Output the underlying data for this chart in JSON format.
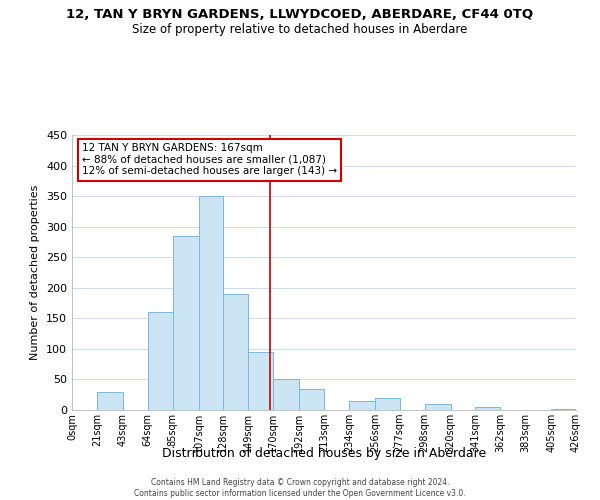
{
  "title": "12, TAN Y BRYN GARDENS, LLWYDCOED, ABERDARE, CF44 0TQ",
  "subtitle": "Size of property relative to detached houses in Aberdare",
  "xlabel": "Distribution of detached houses by size in Aberdare",
  "ylabel": "Number of detached properties",
  "bar_left_edges": [
    0,
    21,
    43,
    64,
    85,
    107,
    128,
    149,
    170,
    192,
    213,
    234,
    256,
    277,
    298,
    320,
    341,
    362,
    383,
    405
  ],
  "bar_widths": [
    21,
    22,
    21,
    21,
    22,
    21,
    21,
    21,
    22,
    21,
    21,
    22,
    21,
    21,
    22,
    21,
    21,
    21,
    22,
    21
  ],
  "bar_heights": [
    0,
    30,
    0,
    160,
    285,
    350,
    190,
    95,
    50,
    35,
    0,
    15,
    20,
    0,
    10,
    0,
    5,
    0,
    0,
    2
  ],
  "bar_color": "#cce5f5",
  "bar_edgecolor": "#7ab8d8",
  "vline_x": 167,
  "vline_color": "#cc0000",
  "ylim": [
    0,
    450
  ],
  "yticks": [
    0,
    50,
    100,
    150,
    200,
    250,
    300,
    350,
    400,
    450
  ],
  "xlim_max": 426,
  "xtick_labels": [
    "0sqm",
    "21sqm",
    "43sqm",
    "64sqm",
    "85sqm",
    "107sqm",
    "128sqm",
    "149sqm",
    "170sqm",
    "192sqm",
    "213sqm",
    "234sqm",
    "256sqm",
    "277sqm",
    "298sqm",
    "320sqm",
    "341sqm",
    "362sqm",
    "383sqm",
    "405sqm",
    "426sqm"
  ],
  "xtick_positions": [
    0,
    21,
    43,
    64,
    85,
    107,
    128,
    149,
    170,
    192,
    213,
    234,
    256,
    277,
    298,
    320,
    341,
    362,
    383,
    405,
    426
  ],
  "annotation_title": "12 TAN Y BRYN GARDENS: 167sqm",
  "annotation_line1": "← 88% of detached houses are smaller (1,087)",
  "annotation_line2": "12% of semi-detached houses are larger (143) →",
  "footer_line1": "Contains HM Land Registry data © Crown copyright and database right 2024.",
  "footer_line2": "Contains public sector information licensed under the Open Government Licence v3.0.",
  "background_color": "#ffffff",
  "grid_color": "#ccdaee",
  "title_fontsize": 9.5,
  "subtitle_fontsize": 8.5,
  "ylabel_fontsize": 8,
  "xlabel_fontsize": 9,
  "ytick_fontsize": 8,
  "xtick_fontsize": 7,
  "annot_fontsize": 7.5,
  "footer_fontsize": 5.5
}
